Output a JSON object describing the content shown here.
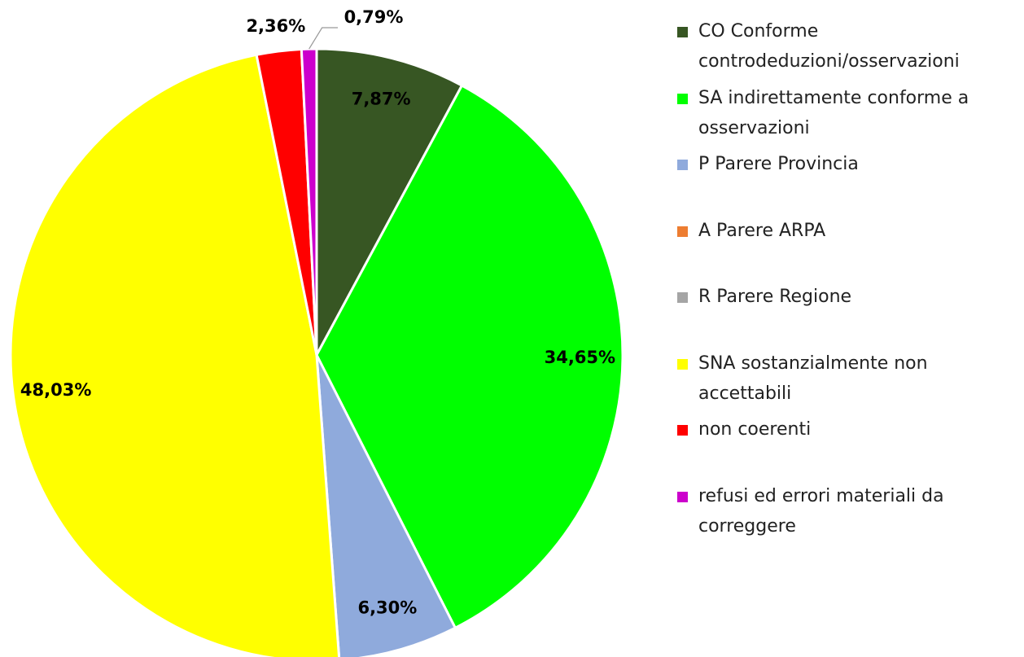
{
  "chart_data": {
    "type": "pie",
    "categories": [
      "CO Conforme controdeduzioni/osservazioni",
      "SA indirettamente conforme a osservazioni",
      "P Parere Provincia",
      "A Parere ARPA",
      "R Parere Regione",
      "SNA sostanzialmente non accettabili",
      "non coerenti",
      "refusi ed errori materiali da correggere"
    ],
    "values": [
      7.87,
      34.65,
      6.3,
      0,
      0,
      48.03,
      2.36,
      0.79
    ],
    "value_labels": [
      "7,87%",
      "34,65%",
      "6,30%",
      null,
      null,
      "48,03%",
      "2,36%",
      "0,79%"
    ],
    "colors": [
      "#375623",
      "#00ff00",
      "#8faadc",
      "#ed7d31",
      "#a5a5a5",
      "#ffff00",
      "#ff0000",
      "#cc00cc"
    ],
    "legend": "right"
  }
}
